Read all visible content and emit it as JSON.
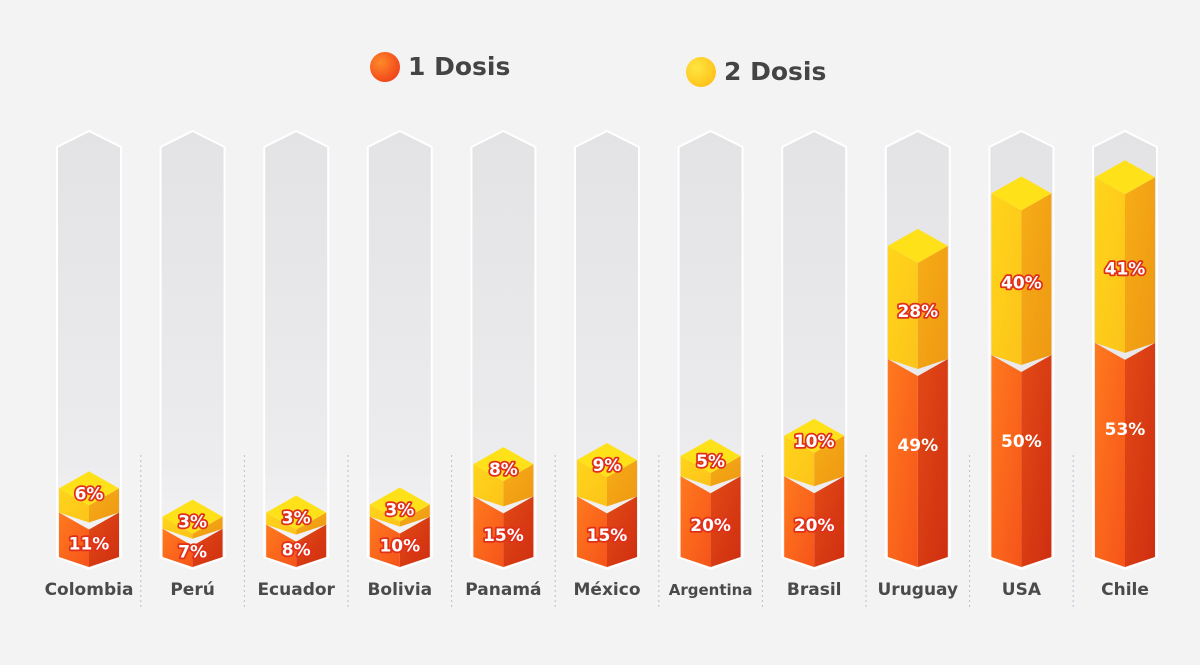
{
  "chart_data": {
    "type": "bar",
    "stacked": true,
    "categories": [
      "Colombia",
      "Perú",
      "Ecuador",
      "Bolivia",
      "Panamá",
      "México",
      "Argentina",
      "Brasil",
      "Uruguay",
      "USA",
      "Chile"
    ],
    "series": [
      {
        "name": "1 Dosis",
        "values": [
          11,
          7,
          8,
          10,
          15,
          15,
          20,
          20,
          49,
          50,
          53
        ],
        "labels": [
          "11%",
          "7%",
          "8%",
          "10%",
          "15%",
          "15%",
          "20%",
          "20%",
          "49%",
          "50%",
          "53%"
        ]
      },
      {
        "name": "2 Dosis",
        "values": [
          6,
          3,
          3,
          3,
          8,
          9,
          5,
          10,
          28,
          40,
          41
        ],
        "labels": [
          "6%",
          "3%",
          "3%",
          "3%",
          "8%",
          "9%",
          "5%",
          "10%",
          "28%",
          "40%",
          "41%"
        ]
      }
    ],
    "colors": {
      "dose1": "#fb6a1c",
      "dose1_dark": "#d93812",
      "dose2": "#ffd21a",
      "dose2_dark": "#f2b417",
      "dose2_top": "#ffe11a",
      "track": "#e4e4e6"
    },
    "legend": {
      "items": [
        "1 Dosis",
        "2 Dosis"
      ],
      "position": "top"
    },
    "grid": false
  }
}
